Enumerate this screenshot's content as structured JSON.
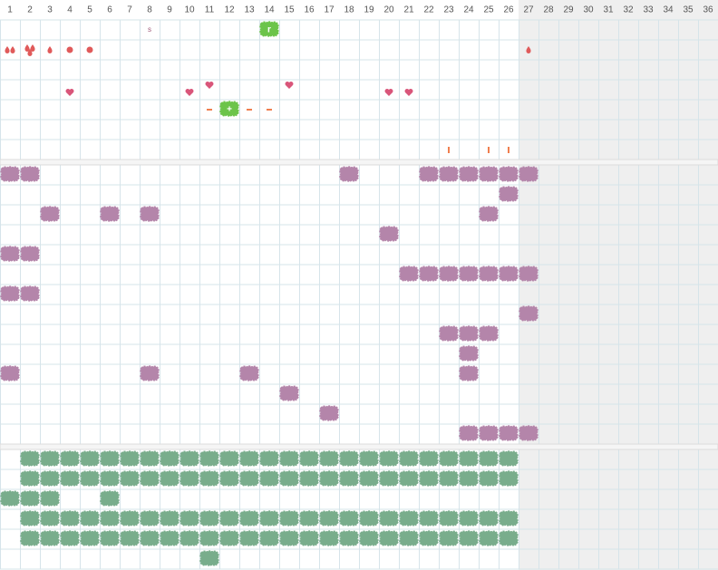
{
  "columns": [
    1,
    2,
    3,
    4,
    5,
    6,
    7,
    8,
    9,
    10,
    11,
    12,
    13,
    14,
    15,
    16,
    17,
    18,
    19,
    20,
    21,
    22,
    23,
    24,
    25,
    26,
    27,
    28,
    29,
    30,
    31,
    32,
    33,
    34,
    35,
    36
  ],
  "note": "s",
  "badge_1": "r",
  "badge_2": "+",
  "sections": [
    {
      "rows": [
        ".......n.....1......................",
        "DTdcc.....................d.........",
        "....................................",
        "...H.....Hh...h....HH...............",
        "..........m2mm......................",
        "....................................",
        "......................t.tt.........."
      ]
    },
    {
      "rows": [
        "PP...............P...PPPPPP.........",
        ".........................P..........",
        "..P..P.P................P...........",
        "...................P................",
        "PP..................................",
        "....................PPPPPPP.........",
        "PP..................................",
        "..........................P.........",
        "......................PPP...........",
        ".......................P............",
        "P......P....P..........P............",
        "..............P.....................",
        "................P...................",
        ".......................PPPP........."
      ]
    },
    {
      "rows": [
        ".GGGGGGGGGGGGGGGGGGGGGGGGG..........",
        ".GGGGGGGGGGGGGGGGGGGGGGGGG..........",
        "GGG..G..............................",
        ".GGGGGGGGGGGGGGGGGGGGGGGGG..........",
        ".GGGGGGGGGGGGGGGGGGGGGGGGG..........",
        "..........G........................."
      ]
    }
  ]
}
